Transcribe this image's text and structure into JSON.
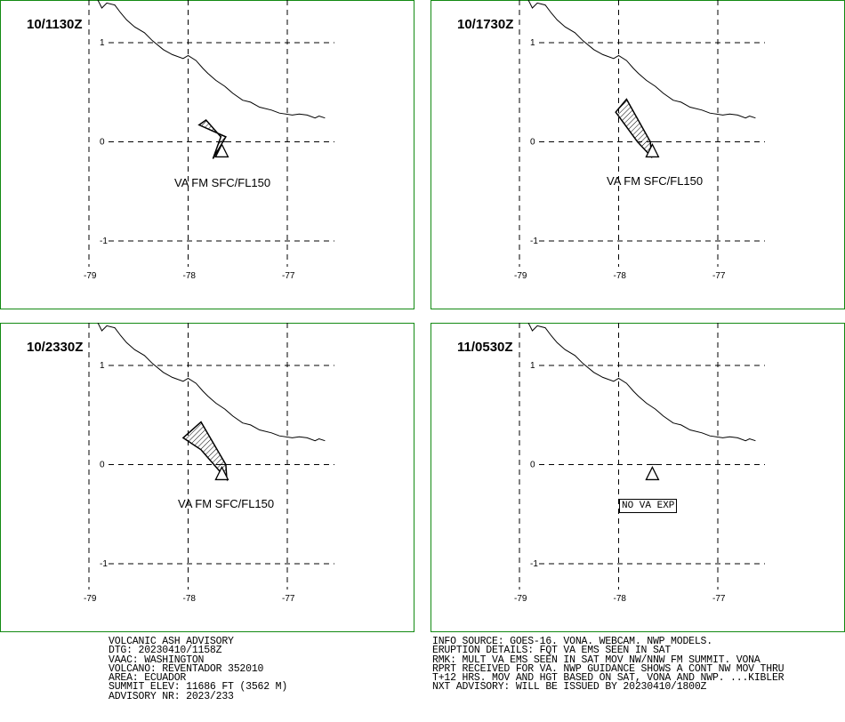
{
  "panels": [
    {
      "time": "10/1130Z",
      "label": "VA FM SFC/FL150",
      "no_va": false,
      "ash_polygon_lonlat": [
        [
          -77.75,
          -0.17
        ],
        [
          -77.62,
          0.05
        ],
        [
          -77.89,
          0.17
        ],
        [
          -77.82,
          0.22
        ],
        [
          -77.67,
          0.05
        ]
      ]
    },
    {
      "time": "10/1730Z",
      "label": "VA FM SFC/FL150",
      "no_va": false,
      "ash_polygon_lonlat": [
        [
          -77.67,
          -0.15
        ],
        [
          -77.81,
          0.0
        ],
        [
          -78.03,
          0.3
        ],
        [
          -77.92,
          0.43
        ],
        [
          -77.68,
          0.0
        ]
      ]
    },
    {
      "time": "10/2330Z",
      "label": "VA FM SFC/FL150",
      "no_va": false,
      "ash_polygon_lonlat": [
        [
          -77.61,
          -0.15
        ],
        [
          -77.87,
          0.15
        ],
        [
          -78.05,
          0.27
        ],
        [
          -77.87,
          0.43
        ],
        [
          -77.62,
          0.0
        ]
      ]
    },
    {
      "time": "11/0530Z",
      "label": "NO VA EXP",
      "no_va": true,
      "ash_polygon_lonlat": []
    }
  ],
  "axes": {
    "lon_ticks": [
      "-79",
      "-78",
      "-77"
    ],
    "lat_ticks": [
      "1",
      "0",
      "-1"
    ],
    "lon_values": [
      -79,
      -78,
      -77
    ],
    "lat_values": [
      1,
      0,
      -1
    ]
  },
  "volcano": {
    "name": "REVENTADOR",
    "lon": -77.66,
    "lat": -0.08
  },
  "coastline_lonlat": [
    [
      -78.92,
      1.45
    ],
    [
      -78.87,
      1.35
    ],
    [
      -78.82,
      1.4
    ],
    [
      -78.74,
      1.38
    ],
    [
      -78.68,
      1.3
    ],
    [
      -78.62,
      1.23
    ],
    [
      -78.54,
      1.16
    ],
    [
      -78.44,
      1.1
    ],
    [
      -78.36,
      1.02
    ],
    [
      -78.25,
      0.93
    ],
    [
      -78.16,
      0.88
    ],
    [
      -78.05,
      0.84
    ],
    [
      -78.0,
      0.87
    ],
    [
      -77.92,
      0.82
    ],
    [
      -77.85,
      0.74
    ],
    [
      -77.8,
      0.69
    ],
    [
      -77.72,
      0.62
    ],
    [
      -77.63,
      0.56
    ],
    [
      -77.55,
      0.49
    ],
    [
      -77.45,
      0.42
    ],
    [
      -77.37,
      0.4
    ],
    [
      -77.28,
      0.35
    ],
    [
      -77.16,
      0.32
    ],
    [
      -77.08,
      0.29
    ],
    [
      -76.95,
      0.27
    ],
    [
      -76.88,
      0.28
    ],
    [
      -76.8,
      0.27
    ],
    [
      -76.72,
      0.24
    ],
    [
      -76.68,
      0.26
    ],
    [
      -76.62,
      0.24
    ]
  ],
  "advisory_left": [
    "VOLCANIC ASH ADVISORY",
    "DTG: 20230410/1158Z",
    "VAAC: WASHINGTON",
    "VOLCANO: REVENTADOR 352010",
    "AREA: ECUADOR",
    "SUMMIT ELEV: 11686 FT (3562 M)",
    "ADVISORY NR: 2023/233"
  ],
  "advisory_right": [
    "INFO SOURCE: GOES-16. VONA. WEBCAM. NWP MODELS.",
    "ERUPTION DETAILS: FQT VA EMS SEEN IN SAT",
    "RMK: MULT VA EMS SEEN IN SAT MOV NW/NNW FM SUMMIT. VONA",
    "RPRT RECEIVED FOR VA. NWP GUIDANCE SHOWS A CONT NW MOV THRU",
    "T+12 HRS. MOV AND HGT BASED ON SAT, VONA AND NWP. ...KIBLER",
    "NXT ADVISORY: WILL BE ISSUED BY 20230410/1800Z"
  ],
  "colors": {
    "panel_border": "#138a13",
    "lines": "#000000"
  }
}
